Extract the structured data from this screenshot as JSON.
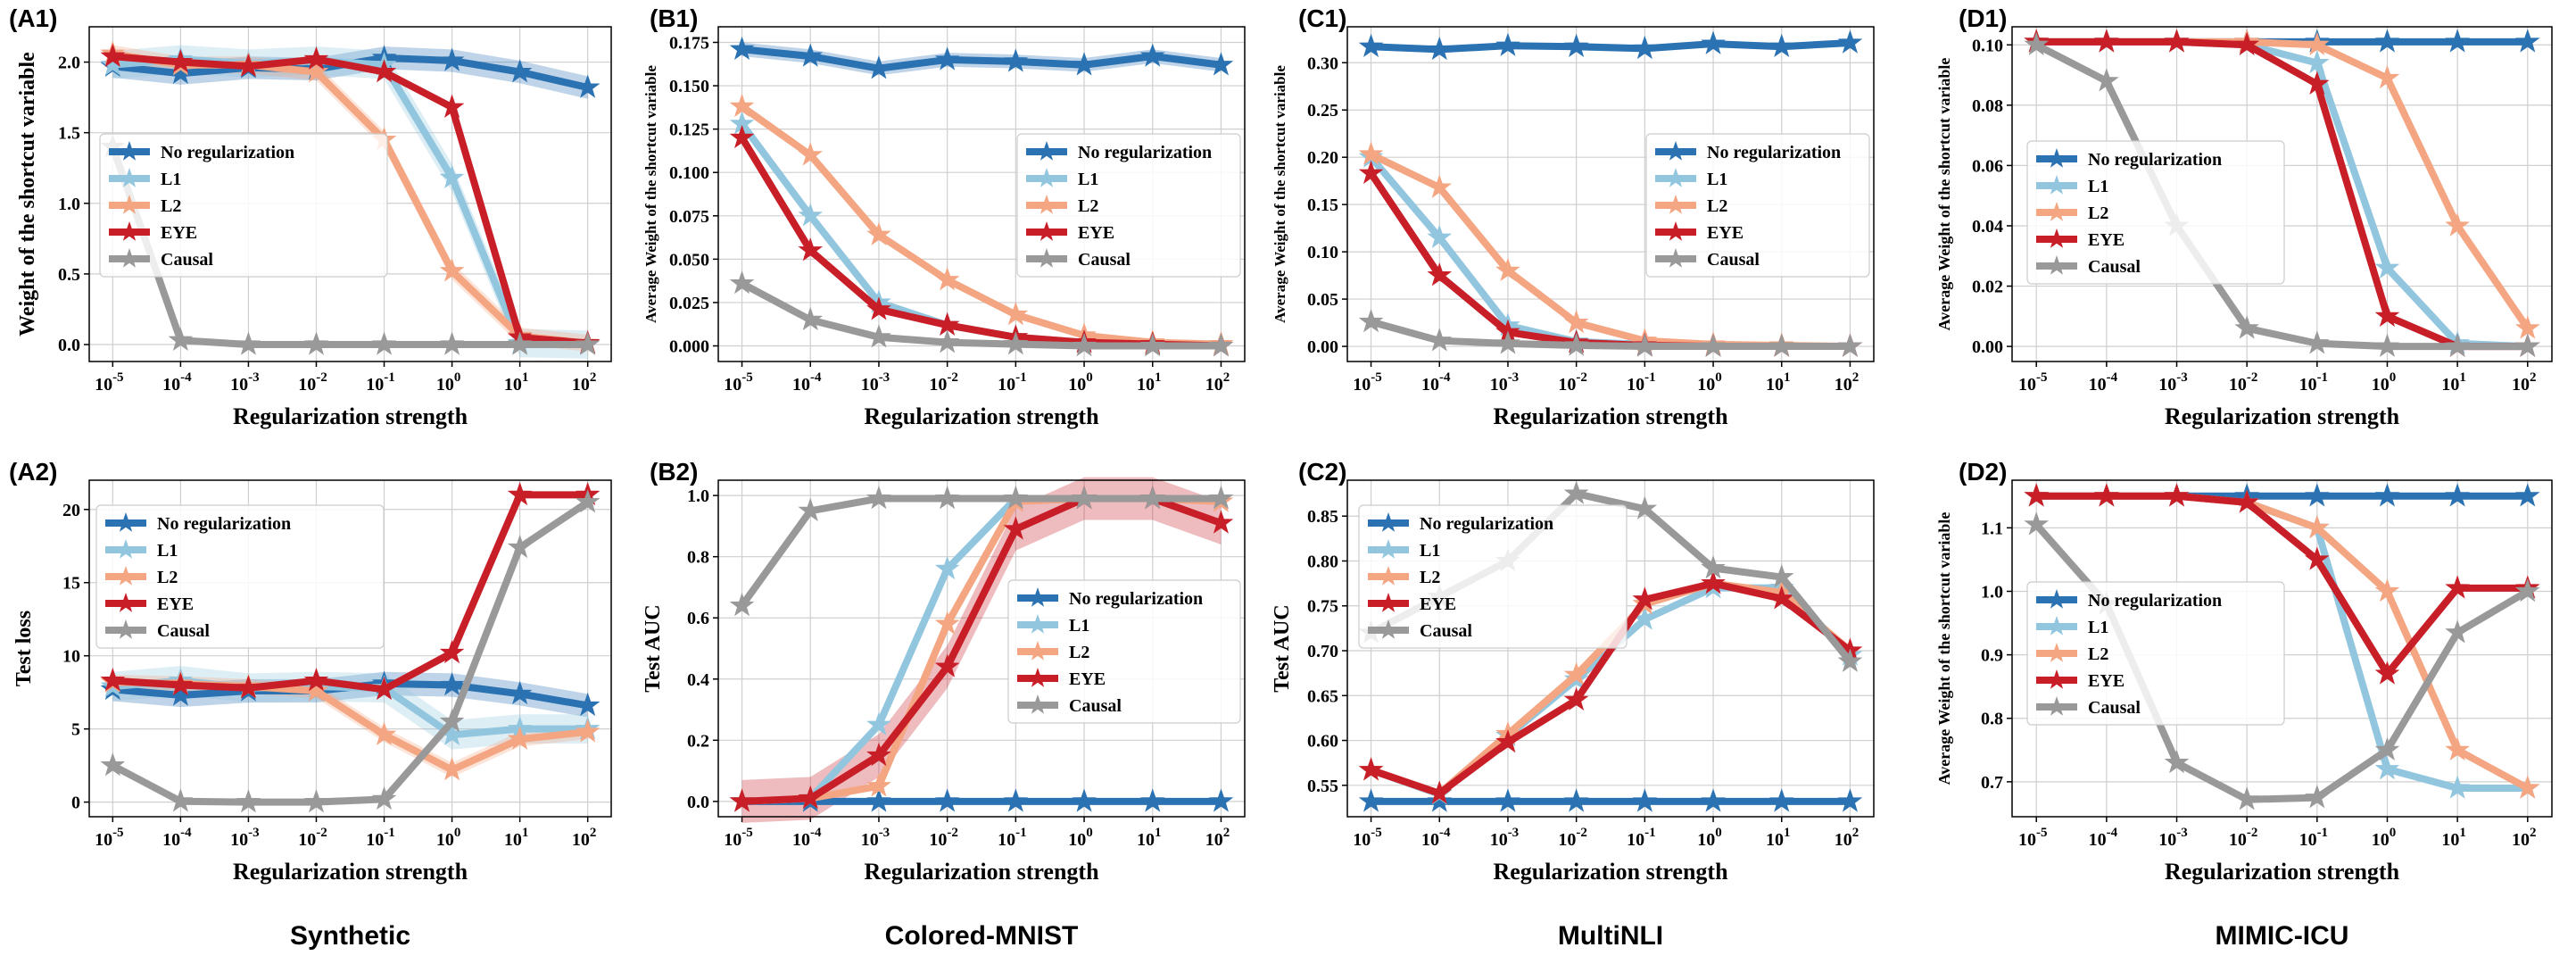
{
  "colors": {
    "No regularization": "#2b72b2",
    "L1": "#92c6df",
    "L2": "#f4a582",
    "EYE": "#c81e28",
    "Causal": "#999999"
  },
  "x_ticks": [
    "-5",
    "-4",
    "-3",
    "-2",
    "-1",
    "0",
    "1",
    "2"
  ],
  "x_tick_base": "10",
  "dataset_labels": [
    "Synthetic",
    "Colored-MNIST",
    "MultiNLI",
    "MIMIC-ICU"
  ],
  "chart_data": [
    {
      "id": "A1",
      "type": "line",
      "panel_label": "(A1)",
      "xlabel": "Regularization strength",
      "ylabel": "Weight of the shortcut variable",
      "ylim": [
        -0.12,
        2.25
      ],
      "yticks": [
        0.0,
        0.5,
        1.0,
        1.5,
        2.0
      ],
      "ytick_labels": [
        "0.0",
        "0.5",
        "1.0",
        "1.5",
        "2.0"
      ],
      "legend_position": "left-center",
      "series": [
        {
          "name": "No regularization",
          "values": [
            1.97,
            1.92,
            1.96,
            1.95,
            2.03,
            2.01,
            1.93,
            1.82
          ],
          "band": 0.08
        },
        {
          "name": "L1",
          "values": [
            1.98,
            2.02,
            1.99,
            2.01,
            1.98,
            1.18,
            0.01,
            0.0
          ],
          "band": 0.1
        },
        {
          "name": "L2",
          "values": [
            2.06,
            1.98,
            1.98,
            1.93,
            1.45,
            0.52,
            0.06,
            0.01
          ],
          "band": 0.06
        },
        {
          "name": "EYE",
          "values": [
            2.04,
            2.0,
            1.97,
            2.02,
            1.93,
            1.68,
            0.05,
            0.01
          ],
          "band": 0.0
        },
        {
          "name": "Causal",
          "values": [
            1.4,
            0.03,
            0.0,
            0.0,
            0.0,
            0.0,
            0.0,
            0.0
          ],
          "band": 0.0
        }
      ]
    },
    {
      "id": "B1",
      "type": "line",
      "panel_label": "(B1)",
      "xlabel": "Regularization strength",
      "ylabel": "Average Weight of the shortcut variable",
      "ylim": [
        -0.009,
        0.184
      ],
      "yticks": [
        0.0,
        0.025,
        0.05,
        0.075,
        0.1,
        0.125,
        0.15,
        0.175
      ],
      "ytick_labels": [
        "0.000",
        "0.025",
        "0.050",
        "0.075",
        "0.100",
        "0.125",
        "0.150",
        "0.175"
      ],
      "legend_position": "right-center",
      "series": [
        {
          "name": "No regularization",
          "values": [
            0.171,
            0.167,
            0.16,
            0.165,
            0.164,
            0.162,
            0.167,
            0.162
          ],
          "band": 0.004
        },
        {
          "name": "L1",
          "values": [
            0.128,
            0.075,
            0.025,
            0.012,
            0.005,
            0.002,
            0.001,
            0.0
          ],
          "band": 0.0
        },
        {
          "name": "L2",
          "values": [
            0.138,
            0.11,
            0.064,
            0.038,
            0.018,
            0.006,
            0.002,
            0.001
          ],
          "band": 0.0
        },
        {
          "name": "EYE",
          "values": [
            0.12,
            0.055,
            0.021,
            0.012,
            0.005,
            0.002,
            0.001,
            0.0
          ],
          "band": 0.0
        },
        {
          "name": "Causal",
          "values": [
            0.036,
            0.015,
            0.005,
            0.002,
            0.001,
            0.0,
            0.0,
            0.0
          ],
          "band": 0.0
        }
      ]
    },
    {
      "id": "C1",
      "type": "line",
      "panel_label": "(C1)",
      "xlabel": "Regularization strength",
      "ylabel": "Average Weight of the shortcut variable",
      "ylim": [
        -0.016,
        0.338
      ],
      "yticks": [
        0.0,
        0.05,
        0.1,
        0.15,
        0.2,
        0.25,
        0.3
      ],
      "ytick_labels": [
        "0.00",
        "0.05",
        "0.10",
        "0.15",
        "0.20",
        "0.25",
        "0.30"
      ],
      "legend_position": "right-center",
      "series": [
        {
          "name": "No regularization",
          "values": [
            0.317,
            0.314,
            0.318,
            0.317,
            0.315,
            0.32,
            0.317,
            0.321
          ],
          "band": 0.0
        },
        {
          "name": "L1",
          "values": [
            0.2,
            0.115,
            0.022,
            0.005,
            0.002,
            0.001,
            0.0,
            0.0
          ],
          "band": 0.0
        },
        {
          "name": "L2",
          "values": [
            0.203,
            0.168,
            0.08,
            0.025,
            0.006,
            0.002,
            0.001,
            0.0
          ],
          "band": 0.0
        },
        {
          "name": "EYE",
          "values": [
            0.183,
            0.075,
            0.015,
            0.004,
            0.001,
            0.0,
            0.0,
            0.0
          ],
          "band": 0.0
        },
        {
          "name": "Causal",
          "values": [
            0.026,
            0.006,
            0.003,
            0.001,
            0.0,
            0.0,
            0.0,
            0.0
          ],
          "band": 0.0
        }
      ]
    },
    {
      "id": "D1",
      "type": "line",
      "panel_label": "(D1)",
      "xlabel": "Regularization strength",
      "ylabel": "Average Weight of the shortcut variable",
      "ylim": [
        -0.005,
        0.106
      ],
      "yticks": [
        0.0,
        0.02,
        0.04,
        0.06,
        0.08,
        0.1
      ],
      "ytick_labels": [
        "0.00",
        "0.02",
        "0.04",
        "0.06",
        "0.08",
        "0.10"
      ],
      "legend_position": "left-center",
      "series": [
        {
          "name": "No regularization",
          "values": [
            0.101,
            0.101,
            0.101,
            0.101,
            0.101,
            0.101,
            0.101,
            0.101
          ],
          "band": 0.0
        },
        {
          "name": "L1",
          "values": [
            0.101,
            0.101,
            0.101,
            0.1,
            0.094,
            0.026,
            0.001,
            0.0
          ],
          "band": 0.0
        },
        {
          "name": "L2",
          "values": [
            0.101,
            0.101,
            0.101,
            0.101,
            0.1,
            0.089,
            0.04,
            0.006
          ],
          "band": 0.0
        },
        {
          "name": "EYE",
          "values": [
            0.101,
            0.101,
            0.101,
            0.1,
            0.087,
            0.01,
            0.0,
            0.0
          ],
          "band": 0.0
        },
        {
          "name": "Causal",
          "values": [
            0.1,
            0.088,
            0.04,
            0.006,
            0.001,
            0.0,
            0.0,
            0.0
          ],
          "band": 0.0
        }
      ]
    },
    {
      "id": "A2",
      "type": "line",
      "panel_label": "(A2)",
      "xlabel": "Regularization strength",
      "ylabel": "Test loss",
      "ylim": [
        -1.0,
        22.0
      ],
      "yticks": [
        0,
        5,
        10,
        15,
        20
      ],
      "ytick_labels": [
        "0",
        "5",
        "10",
        "15",
        "20"
      ],
      "legend_position": "top-left",
      "series": [
        {
          "name": "No regularization",
          "values": [
            7.7,
            7.3,
            7.6,
            7.6,
            8.1,
            8.0,
            7.4,
            6.6
          ],
          "band": 0.8
        },
        {
          "name": "L1",
          "values": [
            7.9,
            8.3,
            7.8,
            7.9,
            7.8,
            4.6,
            5.0,
            5.0
          ],
          "band": 1.0
        },
        {
          "name": "L2",
          "values": [
            8.2,
            8.1,
            7.9,
            7.6,
            4.6,
            2.2,
            4.3,
            4.8
          ],
          "band": 0.5
        },
        {
          "name": "EYE",
          "values": [
            8.3,
            8.0,
            7.8,
            8.3,
            7.7,
            10.2,
            21.0,
            21.0
          ],
          "band": 0.0
        },
        {
          "name": "Causal",
          "values": [
            2.5,
            0.05,
            0.0,
            0.0,
            0.2,
            5.5,
            17.4,
            20.5
          ],
          "band": 0.0
        }
      ]
    },
    {
      "id": "B2",
      "type": "line",
      "panel_label": "(B2)",
      "xlabel": "Regularization strength",
      "ylabel": "Test AUC",
      "ylim": [
        -0.05,
        1.05
      ],
      "yticks": [
        0.0,
        0.2,
        0.4,
        0.6,
        0.8,
        1.0
      ],
      "ytick_labels": [
        "0.0",
        "0.2",
        "0.4",
        "0.6",
        "0.8",
        "1.0"
      ],
      "legend_position": "right-center",
      "series": [
        {
          "name": "No regularization",
          "values": [
            0.0,
            0.0,
            0.0,
            0.0,
            0.0,
            0.0,
            0.0,
            0.0
          ],
          "band": 0.0
        },
        {
          "name": "L1",
          "values": [
            0.0,
            0.01,
            0.25,
            0.76,
            0.99,
            0.99,
            0.99,
            0.99
          ],
          "band": 0.0
        },
        {
          "name": "L2",
          "values": [
            0.0,
            0.01,
            0.05,
            0.58,
            0.98,
            0.99,
            0.99,
            0.98
          ],
          "band": 0.0
        },
        {
          "name": "EYE",
          "values": [
            0.0,
            0.01,
            0.15,
            0.44,
            0.89,
            0.99,
            0.99,
            0.91
          ],
          "band": 0.07
        },
        {
          "name": "Causal",
          "values": [
            0.64,
            0.95,
            0.99,
            0.99,
            0.99,
            0.99,
            0.99,
            0.99
          ],
          "band": 0.0
        }
      ]
    },
    {
      "id": "C2",
      "type": "line",
      "panel_label": "(C2)",
      "xlabel": "Regularization strength",
      "ylabel": "Test AUC",
      "ylim": [
        0.515,
        0.89
      ],
      "yticks": [
        0.55,
        0.6,
        0.65,
        0.7,
        0.75,
        0.8,
        0.85
      ],
      "ytick_labels": [
        "0.55",
        "0.60",
        "0.65",
        "0.70",
        "0.75",
        "0.80",
        "0.85"
      ],
      "legend_position": "top-left",
      "series": [
        {
          "name": "No regularization",
          "values": [
            0.532,
            0.532,
            0.532,
            0.532,
            0.532,
            0.532,
            0.532,
            0.532
          ],
          "band": 0.0
        },
        {
          "name": "L1",
          "values": [
            0.567,
            0.54,
            0.605,
            0.668,
            0.735,
            0.77,
            0.77,
            0.695
          ],
          "band": 0.0
        },
        {
          "name": "L2",
          "values": [
            0.567,
            0.541,
            0.607,
            0.673,
            0.752,
            0.775,
            0.765,
            0.7
          ],
          "band": 0.0
        },
        {
          "name": "EYE",
          "values": [
            0.567,
            0.541,
            0.598,
            0.645,
            0.757,
            0.775,
            0.758,
            0.7
          ],
          "band": 0.0
        },
        {
          "name": "Causal",
          "values": [
            0.72,
            0.76,
            0.8,
            0.875,
            0.858,
            0.792,
            0.782,
            0.688
          ],
          "band": 0.0
        }
      ]
    },
    {
      "id": "D2",
      "type": "line",
      "panel_label": "(D2)",
      "xlabel": "Regularization strength",
      "ylabel": "Average Weight of the shortcut variable",
      "ylim": [
        0.645,
        1.175
      ],
      "yticks": [
        0.7,
        0.8,
        0.9,
        1.0,
        1.1
      ],
      "ytick_labels": [
        "0.7",
        "0.8",
        "0.9",
        "1.0",
        "1.1"
      ],
      "legend_position": "left-center",
      "series": [
        {
          "name": "No regularization",
          "values": [
            1.15,
            1.15,
            1.15,
            1.15,
            1.15,
            1.15,
            1.15,
            1.15
          ],
          "band": 0.0
        },
        {
          "name": "L1",
          "values": [
            1.15,
            1.15,
            1.15,
            1.14,
            1.1,
            0.72,
            0.69,
            0.69
          ],
          "band": 0.0
        },
        {
          "name": "L2",
          "values": [
            1.15,
            1.15,
            1.15,
            1.14,
            1.1,
            1.0,
            0.75,
            0.69
          ],
          "band": 0.0
        },
        {
          "name": "EYE",
          "values": [
            1.15,
            1.15,
            1.15,
            1.14,
            1.05,
            0.87,
            1.005,
            1.005
          ],
          "band": 0.0
        },
        {
          "name": "Causal",
          "values": [
            1.105,
            0.98,
            0.73,
            0.672,
            0.675,
            0.75,
            0.935,
            1.0
          ],
          "band": 0.0
        }
      ]
    }
  ]
}
